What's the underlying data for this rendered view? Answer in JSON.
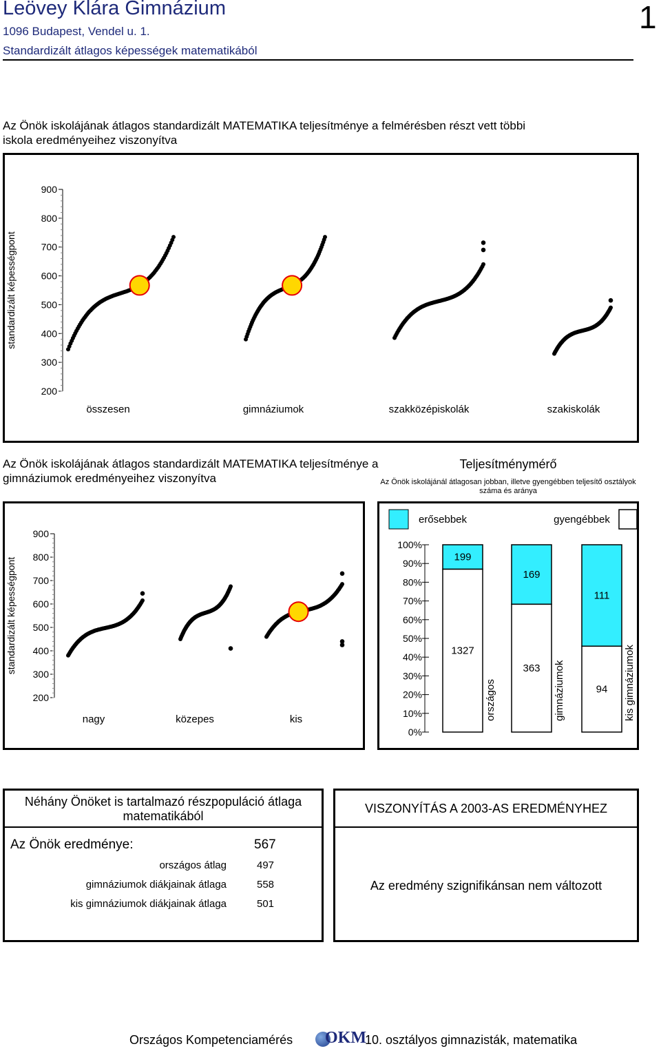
{
  "header": {
    "school": "Leövey Klára Gimnázium",
    "address": "1096 Budapest, Vendel u. 1.",
    "subtitle": "Standardizált átlagos képességek matematikából",
    "page_number": "1"
  },
  "section1": {
    "title": "Az Önök iskolájának átlagos standardizált MATEMATIKA teljesítménye a felmérésben részt vett többi iskola eredményeihez viszonyítva"
  },
  "section2": {
    "title": "Az Önök iskolájának átlagos standardizált MATEMATIKA teljesítménye a gimnáziumok eredményeihez viszonyítva"
  },
  "teljesitmeny": {
    "title": "Teljesítménymérő",
    "subtitle": "Az Önök iskolájánál átlagosan jobban, illetve gyengébben teljesítő osztályok száma és aránya",
    "legend_stronger": "erősebbek",
    "legend_weaker": "gyengébbek"
  },
  "colors": {
    "highlight": "#ffd700",
    "stronger": "#33eeff",
    "weaker": "#ffffff",
    "dots": "#000000"
  },
  "chart_data": [
    {
      "type": "scatter",
      "ylabel": "standardizált képességpont",
      "ylim": [
        200,
        900
      ],
      "yticks": [
        "900",
        "800",
        "700",
        "600",
        "500",
        "400",
        "300",
        "200"
      ],
      "groups": [
        {
          "name": "összesen",
          "min": 345,
          "max": 735,
          "outliers": [],
          "school": 567
        },
        {
          "name": "gimnáziumok",
          "min": 380,
          "max": 735,
          "outliers": [],
          "school": 567
        },
        {
          "name": "szakközépiskolák",
          "min": 385,
          "max": 640,
          "outliers": [
            690,
            715
          ],
          "school": null
        },
        {
          "name": "szakiskolák",
          "min": 330,
          "max": 490,
          "outliers": [
            515
          ],
          "school": null
        }
      ]
    },
    {
      "type": "scatter",
      "ylabel": "standardizált képességpont",
      "ylim": [
        200,
        900
      ],
      "yticks": [
        "900",
        "800",
        "700",
        "600",
        "500",
        "400",
        "300",
        "200"
      ],
      "groups": [
        {
          "name": "nagy",
          "min": 380,
          "max": 615,
          "outliers": [
            645
          ],
          "school": null
        },
        {
          "name": "közepes",
          "min": 450,
          "max": 675,
          "outliers": [
            410
          ],
          "school": null
        },
        {
          "name": "kis",
          "min": 460,
          "max": 685,
          "outliers": [
            425,
            440,
            730
          ],
          "school": 567
        }
      ]
    },
    {
      "type": "bar",
      "yticks": [
        "100%",
        "90%",
        "80%",
        "70%",
        "60%",
        "50%",
        "40%",
        "30%",
        "20%",
        "10%",
        "0%"
      ],
      "categories": [
        "országos",
        "gimnáziumok",
        "kis gimnáziumok"
      ],
      "stronger": [
        199,
        169,
        111
      ],
      "weaker": [
        1327,
        363,
        94
      ]
    }
  ],
  "subpop": {
    "title": "Néhány Önöket is tartalmazó részpopuláció átlaga matematikából",
    "your_label": "Az Önök eredménye:",
    "your_value": "567",
    "rows": [
      {
        "label": "országos átlag",
        "value": "497"
      },
      {
        "label": "gimnáziumok diákjainak átlaga",
        "value": "558"
      },
      {
        "label": "kis gimnáziumok diákjainak átlaga",
        "value": "501"
      }
    ]
  },
  "compare": {
    "title": "VISZONYÍTÁS A 2003-AS EREDMÉNYHEZ",
    "text": "Az eredmény szignifikánsan nem változott"
  },
  "footer": {
    "left": "Országos Kompetenciamérés",
    "logo": "OKM",
    "right": "10. osztályos gimnazisták, matematika"
  }
}
